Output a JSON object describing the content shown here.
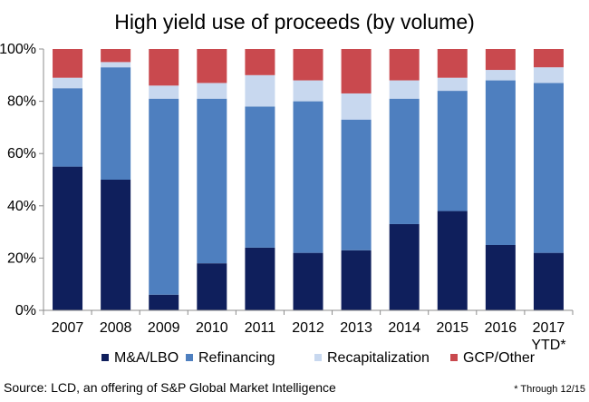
{
  "chart_data": {
    "type": "bar",
    "stacked": true,
    "percent_stacked": true,
    "title": "High yield use of proceeds (by volume)",
    "categories": [
      "2007",
      "2008",
      "2009",
      "2010",
      "2011",
      "2012",
      "2013",
      "2014",
      "2015",
      "2016",
      "2017"
    ],
    "category_sublabels": [
      "",
      "",
      "",
      "",
      "",
      "",
      "",
      "",
      "",
      "",
      "YTD*"
    ],
    "y_ticks": [
      "0%",
      "20%",
      "40%",
      "60%",
      "80%",
      "100%"
    ],
    "ylim": [
      0,
      100
    ],
    "grid": false,
    "legend_position": "bottom",
    "series": [
      {
        "name": "M&A/LBO",
        "color": "#0f1f5c",
        "values": [
          55,
          50,
          6,
          18,
          24,
          22,
          23,
          33,
          38,
          25,
          22
        ]
      },
      {
        "name": "Refinancing",
        "color": "#4e7fbf",
        "values": [
          30,
          43,
          75,
          63,
          54,
          58,
          50,
          48,
          46,
          63,
          65
        ]
      },
      {
        "name": "Recapitalization",
        "color": "#c8d8ef",
        "values": [
          4,
          2,
          5,
          6,
          12,
          8,
          10,
          7,
          5,
          4,
          6
        ]
      },
      {
        "name": "GCP/Other",
        "color": "#c9494e",
        "values": [
          11,
          5,
          14,
          13,
          10,
          12,
          17,
          12,
          11,
          8,
          7
        ]
      }
    ],
    "source": "Source: LCD, an offering of S&P Global Market Intelligence",
    "footnote": "* Through 12/15"
  }
}
